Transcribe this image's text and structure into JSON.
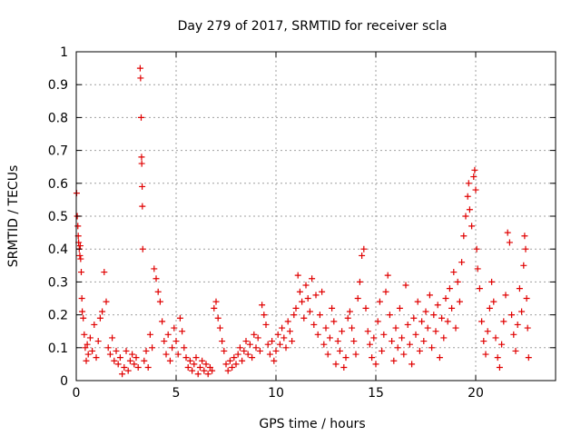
{
  "chart_data": {
    "type": "scatter",
    "title": "Day 279 of 2017, SRMTID for receiver scla",
    "xlabel": "GPS time / hours",
    "ylabel": "SRMTID / TECUs",
    "xlim": [
      0,
      24
    ],
    "ylim": [
      0,
      1
    ],
    "xticks": [
      0,
      5,
      10,
      15,
      20
    ],
    "yticks": [
      0,
      0.1,
      0.2,
      0.3,
      0.4,
      0.5,
      0.6,
      0.7,
      0.8,
      0.9,
      1
    ],
    "ytick_labels": [
      "0",
      "0.1",
      "0.2",
      "0.3",
      "0.4",
      "0.5",
      "0.6",
      "0.7",
      "0.8",
      "0.9",
      "1"
    ],
    "grid": true,
    "marker": "+",
    "colors": {
      "series": "#e00000",
      "grid": "#a0a0a0",
      "axis": "#000000"
    },
    "series": [
      {
        "name": "scla",
        "points": [
          [
            0.02,
            0.57
          ],
          [
            0.05,
            0.5
          ],
          [
            0.08,
            0.47
          ],
          [
            0.1,
            0.44
          ],
          [
            0.12,
            0.42
          ],
          [
            0.15,
            0.4
          ],
          [
            0.18,
            0.38
          ],
          [
            0.2,
            0.41
          ],
          [
            0.22,
            0.37
          ],
          [
            0.25,
            0.33
          ],
          [
            0.28,
            0.25
          ],
          [
            0.3,
            0.21
          ],
          [
            0.35,
            0.19
          ],
          [
            0.4,
            0.14
          ],
          [
            0.45,
            0.1
          ],
          [
            0.5,
            0.06
          ],
          [
            0.55,
            0.11
          ],
          [
            0.6,
            0.08
          ],
          [
            0.7,
            0.13
          ],
          [
            0.8,
            0.09
          ],
          [
            0.9,
            0.17
          ],
          [
            1.0,
            0.07
          ],
          [
            1.1,
            0.12
          ],
          [
            1.2,
            0.19
          ],
          [
            1.3,
            0.21
          ],
          [
            1.4,
            0.33
          ],
          [
            1.5,
            0.24
          ],
          [
            1.6,
            0.1
          ],
          [
            1.7,
            0.08
          ],
          [
            1.8,
            0.13
          ],
          [
            1.9,
            0.06
          ],
          [
            2.0,
            0.09
          ],
          [
            2.1,
            0.05
          ],
          [
            2.2,
            0.07
          ],
          [
            2.3,
            0.02
          ],
          [
            2.4,
            0.04
          ],
          [
            2.5,
            0.09
          ],
          [
            2.6,
            0.03
          ],
          [
            2.7,
            0.06
          ],
          [
            2.8,
            0.08
          ],
          [
            2.9,
            0.05
          ],
          [
            3.0,
            0.07
          ],
          [
            3.1,
            0.04
          ],
          [
            3.2,
            0.95
          ],
          [
            3.22,
            0.92
          ],
          [
            3.25,
            0.8
          ],
          [
            3.27,
            0.68
          ],
          [
            3.28,
            0.66
          ],
          [
            3.3,
            0.59
          ],
          [
            3.31,
            0.53
          ],
          [
            3.33,
            0.4
          ],
          [
            3.4,
            0.06
          ],
          [
            3.5,
            0.09
          ],
          [
            3.6,
            0.04
          ],
          [
            3.7,
            0.14
          ],
          [
            3.8,
            0.1
          ],
          [
            3.9,
            0.34
          ],
          [
            4.0,
            0.31
          ],
          [
            4.1,
            0.27
          ],
          [
            4.2,
            0.24
          ],
          [
            4.3,
            0.18
          ],
          [
            4.4,
            0.12
          ],
          [
            4.5,
            0.08
          ],
          [
            4.6,
            0.14
          ],
          [
            4.7,
            0.06
          ],
          [
            4.8,
            0.1
          ],
          [
            4.9,
            0.16
          ],
          [
            5.0,
            0.12
          ],
          [
            5.1,
            0.08
          ],
          [
            5.2,
            0.19
          ],
          [
            5.3,
            0.15
          ],
          [
            5.4,
            0.1
          ],
          [
            5.5,
            0.07
          ],
          [
            5.6,
            0.04
          ],
          [
            5.7,
            0.06
          ],
          [
            5.8,
            0.03
          ],
          [
            5.9,
            0.05
          ],
          [
            6.0,
            0.07
          ],
          [
            6.1,
            0.02
          ],
          [
            6.2,
            0.04
          ],
          [
            6.3,
            0.06
          ],
          [
            6.4,
            0.03
          ],
          [
            6.5,
            0.05
          ],
          [
            6.6,
            0.02
          ],
          [
            6.7,
            0.04
          ],
          [
            6.8,
            0.03
          ],
          [
            6.9,
            0.22
          ],
          [
            7.0,
            0.24
          ],
          [
            7.1,
            0.19
          ],
          [
            7.2,
            0.16
          ],
          [
            7.3,
            0.12
          ],
          [
            7.4,
            0.09
          ],
          [
            7.5,
            0.05
          ],
          [
            7.6,
            0.03
          ],
          [
            7.7,
            0.06
          ],
          [
            7.8,
            0.04
          ],
          [
            7.9,
            0.07
          ],
          [
            8.0,
            0.05
          ],
          [
            8.1,
            0.08
          ],
          [
            8.2,
            0.1
          ],
          [
            8.3,
            0.06
          ],
          [
            8.4,
            0.09
          ],
          [
            8.5,
            0.12
          ],
          [
            8.6,
            0.08
          ],
          [
            8.7,
            0.11
          ],
          [
            8.8,
            0.07
          ],
          [
            8.9,
            0.14
          ],
          [
            9.0,
            0.1
          ],
          [
            9.1,
            0.13
          ],
          [
            9.2,
            0.09
          ],
          [
            9.3,
            0.23
          ],
          [
            9.4,
            0.2
          ],
          [
            9.5,
            0.17
          ],
          [
            9.6,
            0.11
          ],
          [
            9.7,
            0.08
          ],
          [
            9.8,
            0.12
          ],
          [
            9.9,
            0.06
          ],
          [
            10.0,
            0.09
          ],
          [
            10.1,
            0.14
          ],
          [
            10.2,
            0.11
          ],
          [
            10.3,
            0.16
          ],
          [
            10.4,
            0.13
          ],
          [
            10.5,
            0.1
          ],
          [
            10.6,
            0.18
          ],
          [
            10.7,
            0.15
          ],
          [
            10.8,
            0.12
          ],
          [
            10.9,
            0.2
          ],
          [
            11.0,
            0.22
          ],
          [
            11.1,
            0.32
          ],
          [
            11.2,
            0.27
          ],
          [
            11.3,
            0.24
          ],
          [
            11.4,
            0.19
          ],
          [
            11.5,
            0.29
          ],
          [
            11.6,
            0.25
          ],
          [
            11.7,
            0.21
          ],
          [
            11.8,
            0.31
          ],
          [
            11.9,
            0.17
          ],
          [
            12.0,
            0.26
          ],
          [
            12.1,
            0.14
          ],
          [
            12.2,
            0.2
          ],
          [
            12.3,
            0.27
          ],
          [
            12.4,
            0.11
          ],
          [
            12.5,
            0.16
          ],
          [
            12.6,
            0.08
          ],
          [
            12.7,
            0.13
          ],
          [
            12.8,
            0.22
          ],
          [
            12.9,
            0.18
          ],
          [
            13.0,
            0.05
          ],
          [
            13.1,
            0.12
          ],
          [
            13.2,
            0.09
          ],
          [
            13.3,
            0.15
          ],
          [
            13.4,
            0.04
          ],
          [
            13.5,
            0.07
          ],
          [
            13.6,
            0.19
          ],
          [
            13.7,
            0.21
          ],
          [
            13.8,
            0.16
          ],
          [
            13.9,
            0.12
          ],
          [
            14.0,
            0.08
          ],
          [
            14.1,
            0.25
          ],
          [
            14.2,
            0.3
          ],
          [
            14.3,
            0.38
          ],
          [
            14.4,
            0.4
          ],
          [
            14.5,
            0.22
          ],
          [
            14.6,
            0.15
          ],
          [
            14.7,
            0.11
          ],
          [
            14.8,
            0.07
          ],
          [
            14.9,
            0.13
          ],
          [
            15.0,
            0.05
          ],
          [
            15.1,
            0.18
          ],
          [
            15.2,
            0.24
          ],
          [
            15.3,
            0.09
          ],
          [
            15.4,
            0.14
          ],
          [
            15.5,
            0.27
          ],
          [
            15.6,
            0.32
          ],
          [
            15.7,
            0.2
          ],
          [
            15.8,
            0.12
          ],
          [
            15.9,
            0.06
          ],
          [
            16.0,
            0.16
          ],
          [
            16.1,
            0.1
          ],
          [
            16.2,
            0.22
          ],
          [
            16.3,
            0.13
          ],
          [
            16.4,
            0.08
          ],
          [
            16.5,
            0.29
          ],
          [
            16.6,
            0.17
          ],
          [
            16.7,
            0.11
          ],
          [
            16.8,
            0.05
          ],
          [
            16.9,
            0.19
          ],
          [
            17.0,
            0.14
          ],
          [
            17.1,
            0.24
          ],
          [
            17.2,
            0.09
          ],
          [
            17.3,
            0.18
          ],
          [
            17.4,
            0.12
          ],
          [
            17.5,
            0.21
          ],
          [
            17.6,
            0.16
          ],
          [
            17.7,
            0.26
          ],
          [
            17.8,
            0.1
          ],
          [
            17.9,
            0.2
          ],
          [
            18.0,
            0.15
          ],
          [
            18.1,
            0.23
          ],
          [
            18.2,
            0.07
          ],
          [
            18.3,
            0.19
          ],
          [
            18.4,
            0.13
          ],
          [
            18.5,
            0.25
          ],
          [
            18.6,
            0.18
          ],
          [
            18.7,
            0.28
          ],
          [
            18.8,
            0.22
          ],
          [
            18.9,
            0.33
          ],
          [
            19.0,
            0.16
          ],
          [
            19.1,
            0.3
          ],
          [
            19.2,
            0.24
          ],
          [
            19.3,
            0.36
          ],
          [
            19.4,
            0.44
          ],
          [
            19.5,
            0.5
          ],
          [
            19.6,
            0.56
          ],
          [
            19.65,
            0.6
          ],
          [
            19.7,
            0.52
          ],
          [
            19.8,
            0.47
          ],
          [
            19.9,
            0.62
          ],
          [
            19.95,
            0.64
          ],
          [
            20.0,
            0.58
          ],
          [
            20.05,
            0.4
          ],
          [
            20.1,
            0.34
          ],
          [
            20.2,
            0.28
          ],
          [
            20.3,
            0.18
          ],
          [
            20.4,
            0.12
          ],
          [
            20.5,
            0.08
          ],
          [
            20.6,
            0.15
          ],
          [
            20.7,
            0.22
          ],
          [
            20.8,
            0.3
          ],
          [
            20.9,
            0.24
          ],
          [
            21.0,
            0.13
          ],
          [
            21.1,
            0.07
          ],
          [
            21.2,
            0.04
          ],
          [
            21.3,
            0.11
          ],
          [
            21.4,
            0.18
          ],
          [
            21.5,
            0.26
          ],
          [
            21.6,
            0.45
          ],
          [
            21.7,
            0.42
          ],
          [
            21.8,
            0.2
          ],
          [
            21.9,
            0.14
          ],
          [
            22.0,
            0.09
          ],
          [
            22.1,
            0.17
          ],
          [
            22.2,
            0.28
          ],
          [
            22.3,
            0.21
          ],
          [
            22.4,
            0.35
          ],
          [
            22.45,
            0.44
          ],
          [
            22.5,
            0.4
          ],
          [
            22.55,
            0.25
          ],
          [
            22.6,
            0.16
          ],
          [
            22.65,
            0.07
          ]
        ]
      }
    ]
  }
}
